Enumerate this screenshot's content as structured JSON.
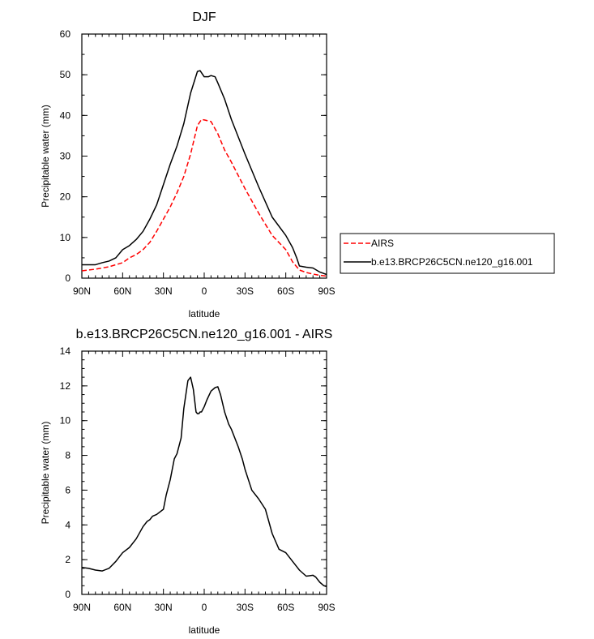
{
  "chart_data": [
    {
      "type": "line",
      "title": "DJF",
      "xlabel": "latitude",
      "ylabel": "Precipitable water (mm)",
      "xlim": [
        90,
        -90
      ],
      "ylim": [
        0,
        60
      ],
      "xtick_values": [
        90,
        60,
        30,
        0,
        -30,
        -60,
        -90
      ],
      "xtick_labels": [
        "90N",
        "60N",
        "30N",
        "0",
        "30S",
        "60S",
        "90S"
      ],
      "ytick_values": [
        0,
        10,
        20,
        30,
        40,
        50,
        60
      ],
      "ytick_labels": [
        "0",
        "10",
        "20",
        "30",
        "40",
        "50",
        "60"
      ],
      "legend_position": "right",
      "series": [
        {
          "name": "AIRS",
          "color": "#ff0000",
          "dash": "dashed",
          "x": [
            90,
            80,
            70,
            60,
            55,
            50,
            45,
            40,
            35,
            30,
            25,
            20,
            15,
            10,
            5,
            2,
            0,
            -5,
            -10,
            -15,
            -20,
            -30,
            -40,
            -50,
            -60,
            -65,
            -70,
            -75,
            -80,
            -85,
            -90
          ],
          "values": [
            1.8,
            2.2,
            2.8,
            3.8,
            5.0,
            5.8,
            7.0,
            8.8,
            11.5,
            14.5,
            17.5,
            21.0,
            25.0,
            30.5,
            37.5,
            39.0,
            38.9,
            38.5,
            35.5,
            31.5,
            28.5,
            22.0,
            16.0,
            10.5,
            7.0,
            4.0,
            2.0,
            1.4,
            1.0,
            0.7,
            0.5
          ]
        },
        {
          "name": "b.e13.BRCP26C5CN.ne120_g16.001",
          "color": "#000000",
          "dash": "solid",
          "x": [
            90,
            80,
            75,
            70,
            65,
            60,
            55,
            50,
            45,
            40,
            35,
            30,
            25,
            20,
            15,
            10,
            5,
            3,
            0,
            -3,
            -5,
            -8,
            -10,
            -15,
            -20,
            -30,
            -40,
            -50,
            -60,
            -65,
            -68,
            -70,
            -75,
            -80,
            -85,
            -90
          ],
          "values": [
            3.3,
            3.3,
            3.8,
            4.2,
            5.0,
            7.0,
            8.0,
            9.5,
            11.5,
            14.5,
            18.0,
            23.0,
            28.0,
            32.5,
            38.0,
            45.5,
            50.8,
            51.0,
            49.5,
            49.5,
            49.8,
            49.5,
            48.0,
            44.0,
            39.0,
            30.5,
            22.5,
            15.0,
            10.5,
            7.5,
            5.0,
            3.0,
            2.7,
            2.5,
            1.5,
            0.9
          ]
        }
      ]
    },
    {
      "type": "line",
      "title": "b.e13.BRCP26C5CN.ne120_g16.001 - AIRS",
      "xlabel": "latitude",
      "ylabel": "Precipitable water (mm)",
      "xlim": [
        90,
        -90
      ],
      "ylim": [
        0,
        14
      ],
      "xtick_values": [
        90,
        60,
        30,
        0,
        -30,
        -60,
        -90
      ],
      "xtick_labels": [
        "90N",
        "60N",
        "30N",
        "0",
        "30S",
        "60S",
        "90S"
      ],
      "ytick_values": [
        0,
        2,
        4,
        6,
        8,
        10,
        12,
        14
      ],
      "ytick_labels": [
        "0",
        "2",
        "4",
        "6",
        "8",
        "10",
        "12",
        "14"
      ],
      "series": [
        {
          "color": "#000000",
          "dash": "solid",
          "x": [
            90,
            85,
            80,
            75,
            70,
            65,
            60,
            55,
            50,
            45,
            42,
            40,
            38,
            35,
            30,
            28,
            25,
            22,
            20,
            17,
            15,
            12,
            10,
            8,
            6,
            5,
            4,
            3,
            2,
            0,
            -2,
            -5,
            -8,
            -10,
            -12,
            -15,
            -18,
            -20,
            -25,
            -28,
            -30,
            -35,
            -40,
            -45,
            -50,
            -55,
            -60,
            -65,
            -68,
            -70,
            -75,
            -80,
            -82,
            -85,
            -88,
            -90
          ],
          "values": [
            1.55,
            1.5,
            1.4,
            1.35,
            1.5,
            1.9,
            2.4,
            2.7,
            3.2,
            3.9,
            4.2,
            4.3,
            4.5,
            4.6,
            4.9,
            5.7,
            6.6,
            7.8,
            8.1,
            9.0,
            10.7,
            12.3,
            12.5,
            11.8,
            10.5,
            10.4,
            10.4,
            10.5,
            10.5,
            10.8,
            11.2,
            11.7,
            11.9,
            11.95,
            11.5,
            10.5,
            9.8,
            9.5,
            8.5,
            7.8,
            7.2,
            6.0,
            5.5,
            4.9,
            3.5,
            2.6,
            2.4,
            1.9,
            1.6,
            1.4,
            1.05,
            1.1,
            1.0,
            0.7,
            0.5,
            0.45
          ]
        }
      ]
    }
  ]
}
